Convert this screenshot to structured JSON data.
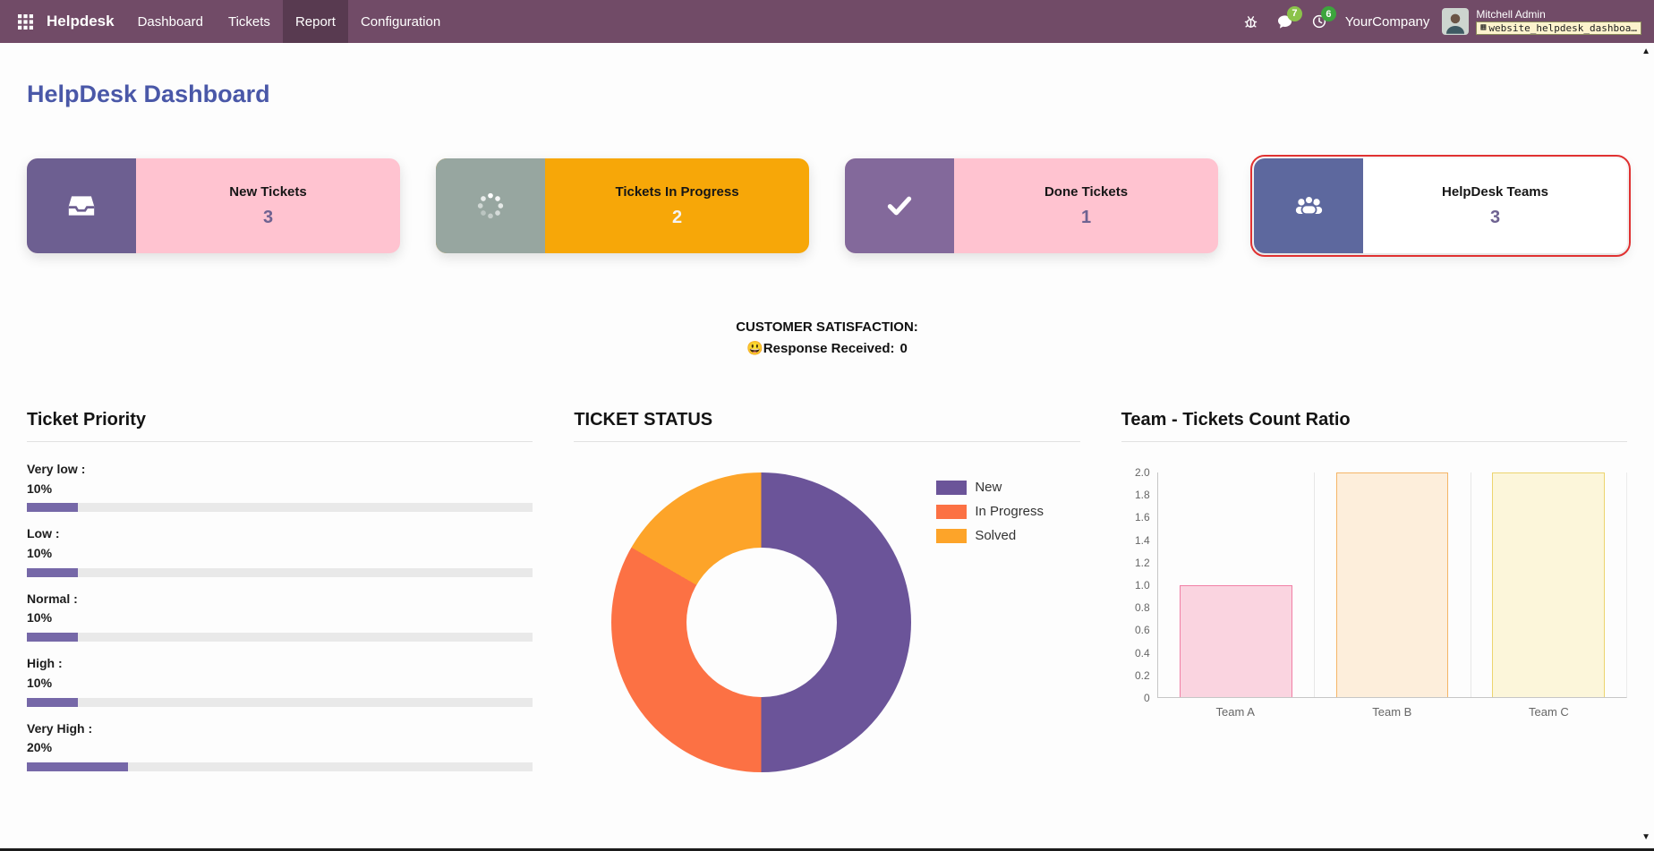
{
  "navbar": {
    "brand": "Helpdesk",
    "menu": [
      {
        "label": "Dashboard",
        "active": false
      },
      {
        "label": "Tickets",
        "active": false
      },
      {
        "label": "Report",
        "active": true
      },
      {
        "label": "Configuration",
        "active": false
      }
    ],
    "systray": {
      "messages_badge": "7",
      "activities_badge": "6",
      "company": "YourCompany",
      "user": "Mitchell Admin",
      "debug_label": "website_helpdesk_dashboa…"
    }
  },
  "page": {
    "title": "HelpDesk Dashboard"
  },
  "kpi_cards": [
    {
      "label": "New Tickets",
      "value": "3",
      "icon": "inbox-icon",
      "icon_bg": "#6d5f91",
      "body_bg": "#ffc3d0",
      "value_color": "#6e6291",
      "highlight": false
    },
    {
      "label": "Tickets In Progress",
      "value": "2",
      "icon": "spinner-icon",
      "icon_bg": "#97a6a0",
      "body_bg": "#f7a708",
      "value_color": "#f4f4f4",
      "highlight": false
    },
    {
      "label": "Done Tickets",
      "value": "1",
      "icon": "check-icon",
      "icon_bg": "#83699b",
      "body_bg": "#ffc3d0",
      "value_color": "#6e6291",
      "highlight": false
    },
    {
      "label": "HelpDesk Teams",
      "value": "3",
      "icon": "users-icon",
      "icon_bg": "#5d689e",
      "body_bg": "#ffffff",
      "value_color": "#6e6291",
      "highlight": true
    }
  ],
  "satisfaction": {
    "heading": "CUSTOMER SATISFACTION:",
    "emoji": "😃",
    "response_label": "Response Received:",
    "response_value": "0"
  },
  "chart_data": [
    {
      "type": "bar",
      "variant": "horizontal-progress",
      "title": "Ticket Priority",
      "categories": [
        "Very low :",
        "Low :",
        "Normal :",
        "High :",
        "Very High :"
      ],
      "values": [
        10,
        10,
        10,
        10,
        20
      ],
      "value_labels": [
        "10%",
        "10%",
        "10%",
        "10%",
        "20%"
      ],
      "xlim": [
        0,
        100
      ],
      "bar_color": "#7668a8",
      "track_color": "#e9e9e9"
    },
    {
      "type": "pie",
      "variant": "donut",
      "cutout": "50%",
      "title": "TICKET STATUS",
      "labels": [
        "New",
        "In Progress",
        "Solved"
      ],
      "values": [
        3,
        2,
        1
      ],
      "colors": [
        "#6b5499",
        "#fc7144",
        "#fda429"
      ],
      "legend_position": "right"
    },
    {
      "type": "bar",
      "title": "Team - Tickets Count Ratio",
      "categories": [
        "Team A",
        "Team B",
        "Team C"
      ],
      "values": [
        1,
        2,
        2
      ],
      "bar_fills": [
        "#fad4e0",
        "#fdeedb",
        "#fcf6da"
      ],
      "bar_borders": [
        "#f17fa5",
        "#f5b567",
        "#ecd46e"
      ],
      "ylim": [
        0,
        2
      ],
      "yticks": [
        "2.0",
        "1.8",
        "1.6",
        "1.4",
        "1.2",
        "1.0",
        "0.8",
        "0.6",
        "0.4",
        "0.2",
        "0"
      ],
      "grid": "vertical"
    }
  ]
}
